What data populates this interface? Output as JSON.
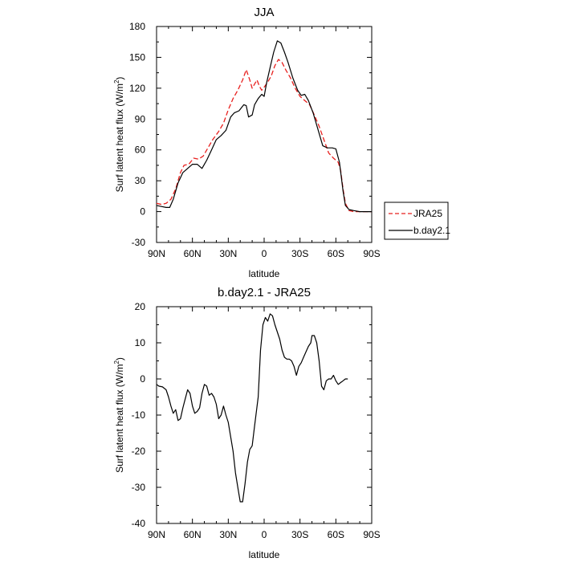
{
  "chart_data": [
    {
      "type": "line",
      "title": "JJA",
      "xlabel": "latitude",
      "ylabel": "Surf latent heat flux (W/m",
      "ylabel_sup": "2",
      "ylabel_close": ")",
      "xlim": [
        -90,
        90
      ],
      "ylim": [
        -30,
        180
      ],
      "x_ticks": [
        {
          "value": -90,
          "label": "90N"
        },
        {
          "value": -60,
          "label": "60N"
        },
        {
          "value": -30,
          "label": "30N"
        },
        {
          "value": 0,
          "label": "0"
        },
        {
          "value": 30,
          "label": "30S"
        },
        {
          "value": 60,
          "label": "60S"
        },
        {
          "value": 90,
          "label": "90S"
        }
      ],
      "y_ticks": [
        -30,
        0,
        30,
        60,
        90,
        120,
        150,
        180
      ],
      "legend": {
        "placement": "outside-right"
      },
      "series": [
        {
          "name": "JRA25",
          "color": "#e8201e",
          "dash": "dashed",
          "points": [
            [
              -90,
              8
            ],
            [
              -86,
              7
            ],
            [
              -82,
              8
            ],
            [
              -78,
              12
            ],
            [
              -74,
              22
            ],
            [
              -70,
              38
            ],
            [
              -67,
              45
            ],
            [
              -63,
              46
            ],
            [
              -59,
              52
            ],
            [
              -55,
              51
            ],
            [
              -51,
              54
            ],
            [
              -47,
              62
            ],
            [
              -43,
              70
            ],
            [
              -38,
              78
            ],
            [
              -34,
              86
            ],
            [
              -30,
              99
            ],
            [
              -26,
              110
            ],
            [
              -22,
              118
            ],
            [
              -18,
              128
            ],
            [
              -15,
              138
            ],
            [
              -12,
              128
            ],
            [
              -10,
              120
            ],
            [
              -8,
              124
            ],
            [
              -6,
              128
            ],
            [
              -4,
              122
            ],
            [
              -2,
              118
            ],
            [
              0,
              121
            ],
            [
              3,
              126
            ],
            [
              6,
              132
            ],
            [
              9,
              142
            ],
            [
              12,
              148
            ],
            [
              15,
              145
            ],
            [
              18,
              138
            ],
            [
              22,
              130
            ],
            [
              26,
              120
            ],
            [
              30,
              112
            ],
            [
              34,
              108
            ],
            [
              38,
              104
            ],
            [
              42,
              94
            ],
            [
              46,
              83
            ],
            [
              50,
              70
            ],
            [
              54,
              57
            ],
            [
              58,
              52
            ],
            [
              62,
              48
            ],
            [
              64,
              40
            ],
            [
              66,
              22
            ],
            [
              68,
              8
            ],
            [
              71,
              1
            ],
            [
              75,
              0
            ],
            [
              80,
              0
            ],
            [
              85,
              0
            ],
            [
              90,
              0
            ]
          ]
        },
        {
          "name": "b.day2.1",
          "color": "#000000",
          "dash": "solid",
          "points": [
            [
              -90,
              6
            ],
            [
              -86,
              5
            ],
            [
              -82,
              4
            ],
            [
              -79,
              4
            ],
            [
              -76,
              12
            ],
            [
              -72,
              28
            ],
            [
              -68,
              38
            ],
            [
              -64,
              42
            ],
            [
              -60,
              46
            ],
            [
              -56,
              46
            ],
            [
              -52,
              42
            ],
            [
              -48,
              50
            ],
            [
              -44,
              60
            ],
            [
              -40,
              70
            ],
            [
              -36,
              74
            ],
            [
              -32,
              79
            ],
            [
              -28,
              92
            ],
            [
              -25,
              96
            ],
            [
              -21,
              98
            ],
            [
              -17,
              104
            ],
            [
              -15,
              103
            ],
            [
              -13,
              92
            ],
            [
              -10,
              94
            ],
            [
              -8,
              104
            ],
            [
              -5,
              110
            ],
            [
              -2,
              114
            ],
            [
              0,
              112
            ],
            [
              2,
              125
            ],
            [
              5,
              140
            ],
            [
              8,
              155
            ],
            [
              11,
              166
            ],
            [
              14,
              164
            ],
            [
              17,
              155
            ],
            [
              20,
              145
            ],
            [
              24,
              130
            ],
            [
              28,
              118
            ],
            [
              31,
              113
            ],
            [
              34,
              114
            ],
            [
              37,
              108
            ],
            [
              41,
              96
            ],
            [
              45,
              80
            ],
            [
              49,
              64
            ],
            [
              53,
              62
            ],
            [
              57,
              62
            ],
            [
              60,
              61
            ],
            [
              63,
              48
            ],
            [
              66,
              20
            ],
            [
              68,
              6
            ],
            [
              71,
              2
            ],
            [
              75,
              1
            ],
            [
              80,
              0
            ],
            [
              85,
              0
            ],
            [
              90,
              0
            ]
          ]
        }
      ]
    },
    {
      "type": "line",
      "title": "b.day2.1 - JRA25",
      "xlabel": "latitude",
      "ylabel": "Surf latent heat flux (W/m",
      "ylabel_sup": "2",
      "ylabel_close": ")",
      "xlim": [
        -90,
        90
      ],
      "ylim": [
        -40,
        20
      ],
      "x_ticks": [
        {
          "value": -90,
          "label": "90N"
        },
        {
          "value": -60,
          "label": "60N"
        },
        {
          "value": -30,
          "label": "30N"
        },
        {
          "value": 0,
          "label": "0"
        },
        {
          "value": 30,
          "label": "30S"
        },
        {
          "value": 60,
          "label": "60S"
        },
        {
          "value": 90,
          "label": "90S"
        }
      ],
      "y_ticks": [
        -40,
        -30,
        -20,
        -10,
        0,
        10,
        20
      ],
      "series": [
        {
          "color": "#000000",
          "dash": "solid",
          "points": [
            [
              -90,
              -1.5
            ],
            [
              -88,
              -2
            ],
            [
              -85,
              -2.2
            ],
            [
              -82,
              -3
            ],
            [
              -80,
              -5
            ],
            [
              -78,
              -7.5
            ],
            [
              -76,
              -9.5
            ],
            [
              -74,
              -8.5
            ],
            [
              -72,
              -11.5
            ],
            [
              -70,
              -11
            ],
            [
              -68,
              -8
            ],
            [
              -66,
              -5.5
            ],
            [
              -64,
              -3
            ],
            [
              -62,
              -4
            ],
            [
              -60,
              -7.5
            ],
            [
              -58,
              -9.5
            ],
            [
              -56,
              -9
            ],
            [
              -54,
              -8
            ],
            [
              -52,
              -4
            ],
            [
              -50,
              -1.5
            ],
            [
              -48,
              -2
            ],
            [
              -46,
              -4.5
            ],
            [
              -44,
              -4
            ],
            [
              -42,
              -5
            ],
            [
              -40,
              -7
            ],
            [
              -38,
              -11
            ],
            [
              -36,
              -10
            ],
            [
              -34,
              -7.5
            ],
            [
              -32,
              -10
            ],
            [
              -30,
              -12
            ],
            [
              -28,
              -16
            ],
            [
              -26,
              -20
            ],
            [
              -24,
              -26
            ],
            [
              -22,
              -30
            ],
            [
              -20,
              -34
            ],
            [
              -18,
              -34
            ],
            [
              -16,
              -29
            ],
            [
              -14,
              -23
            ],
            [
              -12,
              -19.5
            ],
            [
              -10,
              -18.5
            ],
            [
              -8,
              -13
            ],
            [
              -5,
              -5
            ],
            [
              -3,
              8
            ],
            [
              -1,
              15
            ],
            [
              1,
              17
            ],
            [
              3,
              16
            ],
            [
              5,
              18
            ],
            [
              7,
              17.5
            ],
            [
              9,
              15
            ],
            [
              11,
              13
            ],
            [
              13,
              11
            ],
            [
              15,
              8
            ],
            [
              17,
              6
            ],
            [
              19,
              5.5
            ],
            [
              21,
              5.5
            ],
            [
              23,
              5
            ],
            [
              25,
              3.5
            ],
            [
              27,
              1
            ],
            [
              29,
              3.5
            ],
            [
              31,
              4.5
            ],
            [
              33,
              6
            ],
            [
              35,
              7.5
            ],
            [
              37,
              9
            ],
            [
              39,
              10
            ],
            [
              40,
              12
            ],
            [
              42,
              12
            ],
            [
              44,
              10
            ],
            [
              46,
              5
            ],
            [
              48,
              -2
            ],
            [
              50,
              -3
            ],
            [
              52,
              -0.5
            ],
            [
              54,
              0
            ],
            [
              56,
              0
            ],
            [
              58,
              1
            ],
            [
              60,
              -0.5
            ],
            [
              62,
              -1.5
            ],
            [
              64,
              -1
            ],
            [
              66,
              -0.5
            ],
            [
              68,
              0
            ],
            [
              70,
              0
            ]
          ]
        }
      ]
    }
  ]
}
